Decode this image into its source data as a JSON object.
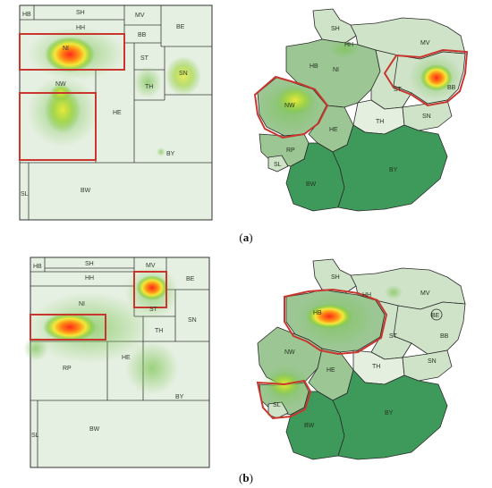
{
  "panels": [
    {
      "caption_letter": "a",
      "treemap_labels": {
        "HB": "HB",
        "SH": "SH",
        "MV": "MV",
        "HH": "HH",
        "BB": "BB",
        "BE": "BE",
        "NI": "NI",
        "ST": "ST",
        "SN": "SN",
        "NW": "NW",
        "TH": "TH",
        "HE": "HE",
        "BY": "BY",
        "SL": "SL",
        "BW": "BW"
      },
      "map_labels": {
        "SH": "SH",
        "HH": "HH",
        "HB": "HB",
        "NI": "NI",
        "MV": "MV",
        "BB": "BB",
        "ST": "ST",
        "NW": "NW",
        "HE": "HE",
        "TH": "TH",
        "SN": "SN",
        "RP": "RP",
        "SL": "SL",
        "BW": "BW",
        "BY": "BY"
      }
    },
    {
      "caption_letter": "b",
      "treemap_labels": {
        "HB": "HB",
        "SH": "SH",
        "MV": "MV",
        "HH": "HH",
        "BE": "BE",
        "NI": "NI",
        "ST": "ST",
        "SN": "SN",
        "TH": "TH",
        "RP": "RP",
        "HE": "HE",
        "BY": "BY",
        "SL": "SL",
        "BW": "BW"
      },
      "map_labels": {
        "SH": "SH",
        "HH": "HH",
        "HB": "HB",
        "MV": "MV",
        "BE": "BE",
        "BB": "BB",
        "NW": "NW",
        "ST": "ST",
        "HE": "HE",
        "TH": "TH",
        "SN": "SN",
        "SL": "SL",
        "BW": "BW",
        "BY": "BY"
      }
    }
  ],
  "colors": {
    "highlight": "#c8362e",
    "treemap_fill": "#e6f0e2",
    "region_light": "#cfe3c9",
    "region_mid": "#9cc795",
    "region_dark": "#3e9a5a"
  }
}
